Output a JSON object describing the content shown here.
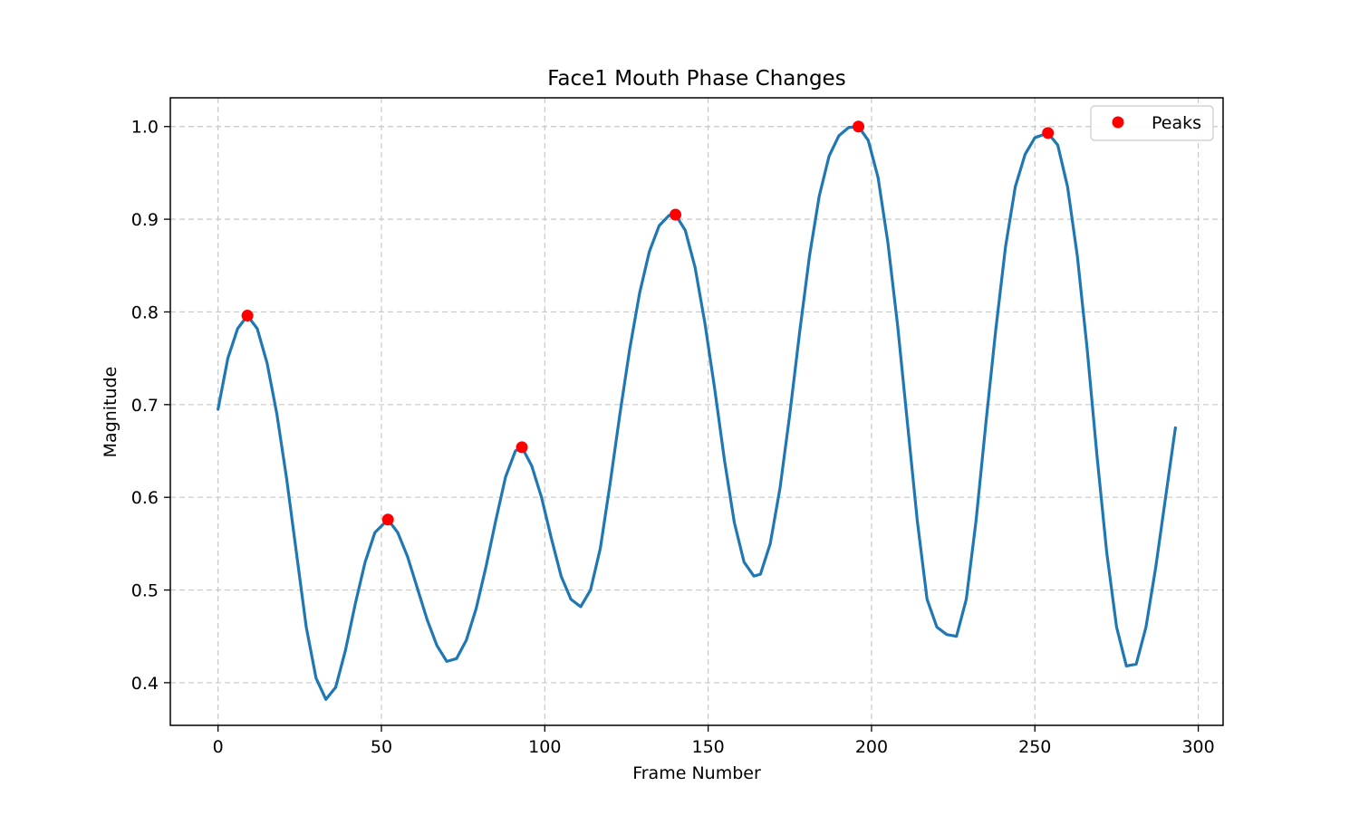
{
  "chart_data": {
    "type": "line",
    "title": "Face1 Mouth Phase Changes",
    "xlabel": "Frame Number",
    "ylabel": "Magnitude",
    "xlim": [
      -14.6,
      307.6
    ],
    "ylim": [
      0.354,
      1.031
    ],
    "xticks": [
      0,
      50,
      100,
      150,
      200,
      250,
      300
    ],
    "yticks": [
      0.4,
      0.5,
      0.6,
      0.7,
      0.8,
      0.9,
      1.0
    ],
    "grid": true,
    "legend": {
      "position": "top-right",
      "entries": [
        "Peaks"
      ]
    },
    "series": [
      {
        "name": "Magnitude",
        "color": "#1f77b4",
        "points": [
          [
            0,
            0.695
          ],
          [
            3,
            0.75
          ],
          [
            6,
            0.782
          ],
          [
            9,
            0.796
          ],
          [
            12,
            0.782
          ],
          [
            15,
            0.745
          ],
          [
            18,
            0.69
          ],
          [
            21,
            0.62
          ],
          [
            24,
            0.54
          ],
          [
            27,
            0.46
          ],
          [
            30,
            0.405
          ],
          [
            33,
            0.382
          ],
          [
            36,
            0.395
          ],
          [
            39,
            0.435
          ],
          [
            42,
            0.485
          ],
          [
            45,
            0.53
          ],
          [
            48,
            0.562
          ],
          [
            52,
            0.576
          ],
          [
            55,
            0.562
          ],
          [
            58,
            0.536
          ],
          [
            61,
            0.502
          ],
          [
            64,
            0.468
          ],
          [
            67,
            0.44
          ],
          [
            70,
            0.423
          ],
          [
            73,
            0.426
          ],
          [
            76,
            0.446
          ],
          [
            79,
            0.48
          ],
          [
            82,
            0.525
          ],
          [
            85,
            0.575
          ],
          [
            88,
            0.622
          ],
          [
            91,
            0.65
          ],
          [
            93,
            0.654
          ],
          [
            96,
            0.634
          ],
          [
            99,
            0.6
          ],
          [
            102,
            0.556
          ],
          [
            105,
            0.515
          ],
          [
            108,
            0.49
          ],
          [
            111,
            0.482
          ],
          [
            114,
            0.5
          ],
          [
            117,
            0.545
          ],
          [
            120,
            0.615
          ],
          [
            123,
            0.69
          ],
          [
            126,
            0.76
          ],
          [
            129,
            0.82
          ],
          [
            132,
            0.865
          ],
          [
            135,
            0.893
          ],
          [
            138,
            0.904
          ],
          [
            140,
            0.905
          ],
          [
            143,
            0.888
          ],
          [
            146,
            0.848
          ],
          [
            149,
            0.788
          ],
          [
            152,
            0.717
          ],
          [
            155,
            0.64
          ],
          [
            158,
            0.573
          ],
          [
            161,
            0.53
          ],
          [
            164,
            0.515
          ],
          [
            166,
            0.517
          ],
          [
            169,
            0.55
          ],
          [
            172,
            0.61
          ],
          [
            175,
            0.69
          ],
          [
            178,
            0.778
          ],
          [
            181,
            0.86
          ],
          [
            184,
            0.925
          ],
          [
            187,
            0.968
          ],
          [
            190,
            0.99
          ],
          [
            193,
            0.999
          ],
          [
            196,
            1.0
          ],
          [
            199,
            0.985
          ],
          [
            202,
            0.945
          ],
          [
            205,
            0.875
          ],
          [
            208,
            0.785
          ],
          [
            211,
            0.68
          ],
          [
            214,
            0.575
          ],
          [
            217,
            0.49
          ],
          [
            220,
            0.46
          ],
          [
            223,
            0.452
          ],
          [
            226,
            0.45
          ],
          [
            229,
            0.49
          ],
          [
            232,
            0.575
          ],
          [
            235,
            0.68
          ],
          [
            238,
            0.78
          ],
          [
            241,
            0.87
          ],
          [
            244,
            0.935
          ],
          [
            247,
            0.97
          ],
          [
            250,
            0.988
          ],
          [
            254,
            0.993
          ],
          [
            257,
            0.98
          ],
          [
            260,
            0.935
          ],
          [
            263,
            0.86
          ],
          [
            266,
            0.76
          ],
          [
            269,
            0.645
          ],
          [
            272,
            0.54
          ],
          [
            275,
            0.46
          ],
          [
            278,
            0.418
          ],
          [
            281,
            0.42
          ],
          [
            284,
            0.46
          ],
          [
            287,
            0.525
          ],
          [
            290,
            0.6
          ],
          [
            293,
            0.675
          ]
        ]
      }
    ],
    "peaks": {
      "name": "Peaks",
      "color": "#ff0000",
      "points": [
        [
          9,
          0.796
        ],
        [
          52,
          0.576
        ],
        [
          93,
          0.654
        ],
        [
          140,
          0.905
        ],
        [
          196,
          1.0
        ],
        [
          254,
          0.993
        ]
      ]
    }
  }
}
